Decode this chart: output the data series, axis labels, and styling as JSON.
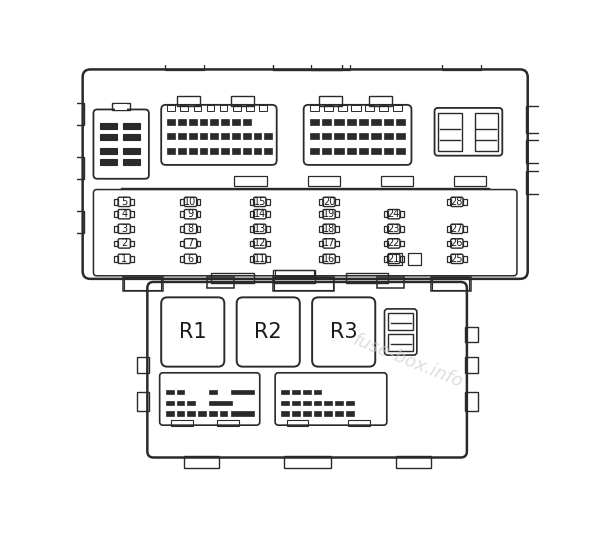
{
  "bg_color": "#ffffff",
  "line_color": "#2a2a2a",
  "text_color": "#1a1a1a",
  "watermark_color": "#cccccc",
  "watermark_text": "fuse-box.info",
  "fuse_labels": [
    [
      1,
      6,
      11,
      16,
      21,
      25
    ],
    [
      2,
      7,
      12,
      17,
      22,
      26
    ],
    [
      3,
      8,
      13,
      18,
      23,
      27
    ],
    [
      4,
      9,
      14,
      19,
      24,
      null
    ],
    [
      5,
      10,
      15,
      20,
      null,
      28
    ]
  ],
  "relay_labels": [
    "R1",
    "R2",
    "R3"
  ]
}
